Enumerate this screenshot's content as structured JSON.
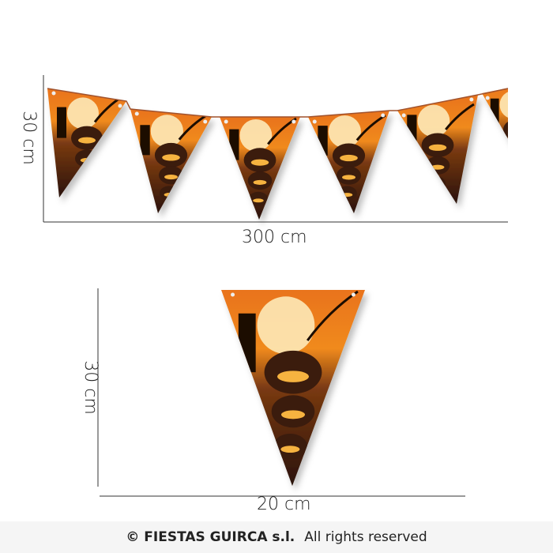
{
  "banner": {
    "height_label": "30 cm",
    "length_label": "300 cm",
    "flag_count_visible": 6
  },
  "single_flag": {
    "height_label": "30 cm",
    "width_label": "20 cm"
  },
  "colors": {
    "flag_top": "#f08a1c",
    "flag_bottom": "#2a1208",
    "moon": "#fde9b8",
    "pumpkin_glow": "#f6b340",
    "footer_bg": "#f5f5f5"
  },
  "footer": {
    "brand": "© FIESTAS GUIRCA s.l.",
    "rights": "All rights reserved"
  }
}
